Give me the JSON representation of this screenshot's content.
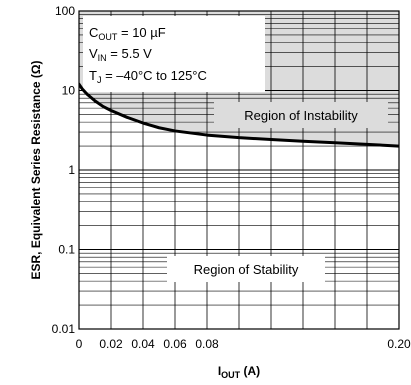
{
  "chart_data": {
    "type": "line",
    "x_scale": "linear",
    "y_scale": "log",
    "xlim": [
      0,
      0.2
    ],
    "ylim": [
      0.01,
      100
    ],
    "x_ticks": [
      0,
      0.02,
      0.04,
      0.06,
      0.08,
      0.1,
      0.12,
      0.14,
      0.16,
      0.18,
      0.2
    ],
    "x_tick_labels": [
      "0",
      "0.02",
      "0.04",
      "0.06",
      "0.08",
      "0.20"
    ],
    "x_tick_label_values": [
      0,
      0.02,
      0.04,
      0.06,
      0.08,
      0.2
    ],
    "y_ticks": [
      0.01,
      0.1,
      1,
      10,
      100
    ],
    "y_tick_labels": [
      "0.01",
      "0.1",
      "1",
      "10",
      "100"
    ],
    "grid": true,
    "xlabel": {
      "main": "I",
      "sub": "OUT",
      "rest": " (A)"
    },
    "ylabel": "ESR, Equivalent Series Resistance (Ω)",
    "series": [
      {
        "x": [
          0,
          0.002,
          0.005,
          0.01,
          0.015,
          0.02,
          0.03,
          0.04,
          0.05,
          0.06,
          0.08,
          0.1,
          0.12,
          0.14,
          0.16,
          0.18,
          0.2
        ],
        "y": [
          12,
          10.5,
          9,
          7.4,
          6.3,
          5.6,
          4.6,
          3.9,
          3.4,
          3.1,
          2.75,
          2.55,
          2.42,
          2.3,
          2.2,
          2.1,
          2.0
        ]
      }
    ],
    "regions": [
      {
        "label": "Region of Instability",
        "side": "above",
        "color": "#dcdcdc"
      },
      {
        "label": "Region of Stability",
        "side": "below",
        "color": "#ffffff"
      }
    ],
    "conditions": [
      {
        "main": "C",
        "sub": "OUT",
        "rest": " = 10 µF"
      },
      {
        "main": "V",
        "sub": "IN",
        "rest": " = 5.5 V"
      },
      {
        "main": "T",
        "sub": "J",
        "rest": " = –40°C to 125°C"
      }
    ],
    "colors": {
      "curve": "#000000",
      "grid": "#000000",
      "instability_fill": "#dcdcdc"
    }
  }
}
